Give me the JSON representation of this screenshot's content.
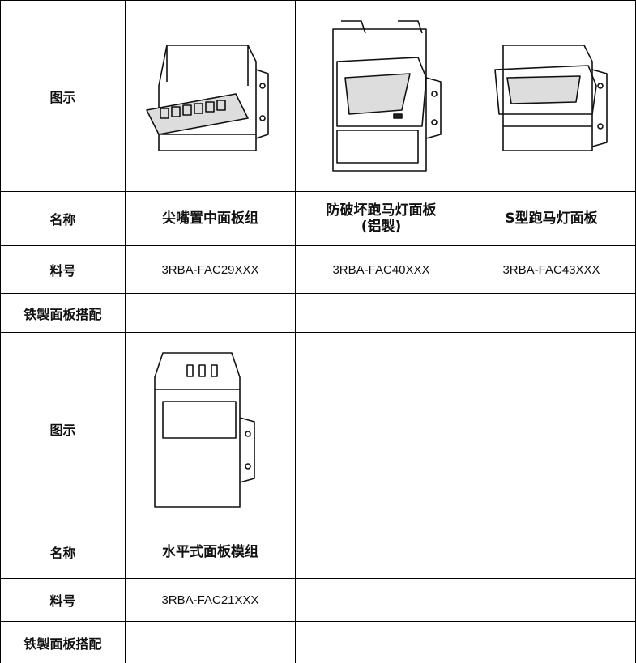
{
  "table": {
    "rows": [
      {
        "label": "图示"
      },
      {
        "label": "名称",
        "cells": [
          "尖嘴置中面板组",
          [
            "防破坏跑马灯面板",
            "(铝製)"
          ],
          "S型跑马灯面板"
        ]
      },
      {
        "label": "料号",
        "cells": [
          "3RBA-FAC29XXX",
          "3RBA-FAC40XXX",
          "3RBA-FAC43XXX"
        ]
      },
      {
        "label": "铁製面板搭配"
      },
      {
        "label": "图示"
      },
      {
        "label": "名称",
        "cells": [
          "水平式面板模组"
        ]
      },
      {
        "label": "料号",
        "cells": [
          "3RBA-FAC21XXX"
        ]
      },
      {
        "label": "铁製面板搭配"
      }
    ]
  }
}
